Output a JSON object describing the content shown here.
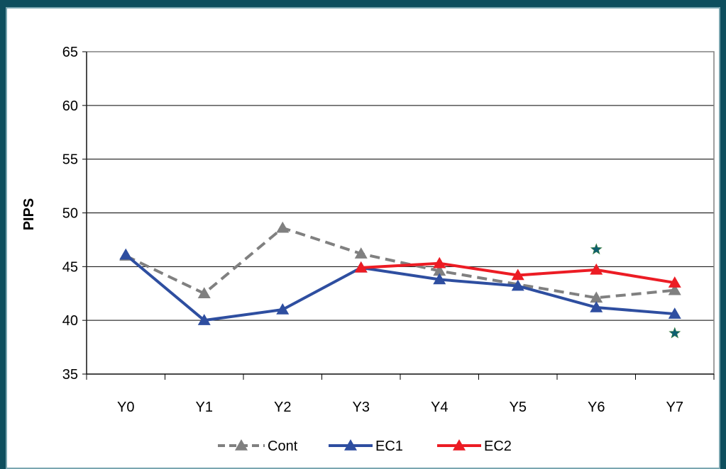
{
  "chart_data": {
    "type": "line",
    "title": "",
    "xlabel": "",
    "ylabel": "PIPS",
    "categories": [
      "Y0",
      "Y1",
      "Y2",
      "Y3",
      "Y4",
      "Y5",
      "Y6",
      "Y7"
    ],
    "ylim": [
      35,
      65
    ],
    "yticks": [
      35,
      40,
      45,
      50,
      55,
      60,
      65
    ],
    "grid": true,
    "legend_position": "bottom",
    "series": [
      {
        "name": "Cont",
        "color": "#808080",
        "dash": true,
        "values": [
          46.0,
          42.5,
          48.6,
          46.2,
          44.6,
          null,
          42.1,
          42.8
        ]
      },
      {
        "name": "EC1",
        "color": "#2e4ea0",
        "dash": false,
        "values": [
          46.1,
          40.0,
          41.0,
          44.9,
          43.8,
          43.2,
          41.2,
          40.6
        ]
      },
      {
        "name": "EC2",
        "color": "#ec1c24",
        "dash": false,
        "values": [
          null,
          null,
          null,
          44.9,
          45.3,
          44.2,
          44.7,
          43.5
        ]
      }
    ],
    "annotations": [
      {
        "symbol": "star",
        "category": "Y6",
        "y": 46.6,
        "color": "#0e5f70"
      },
      {
        "symbol": "star",
        "category": "Y7",
        "y": 38.8,
        "color": "#0e5f70"
      }
    ]
  }
}
